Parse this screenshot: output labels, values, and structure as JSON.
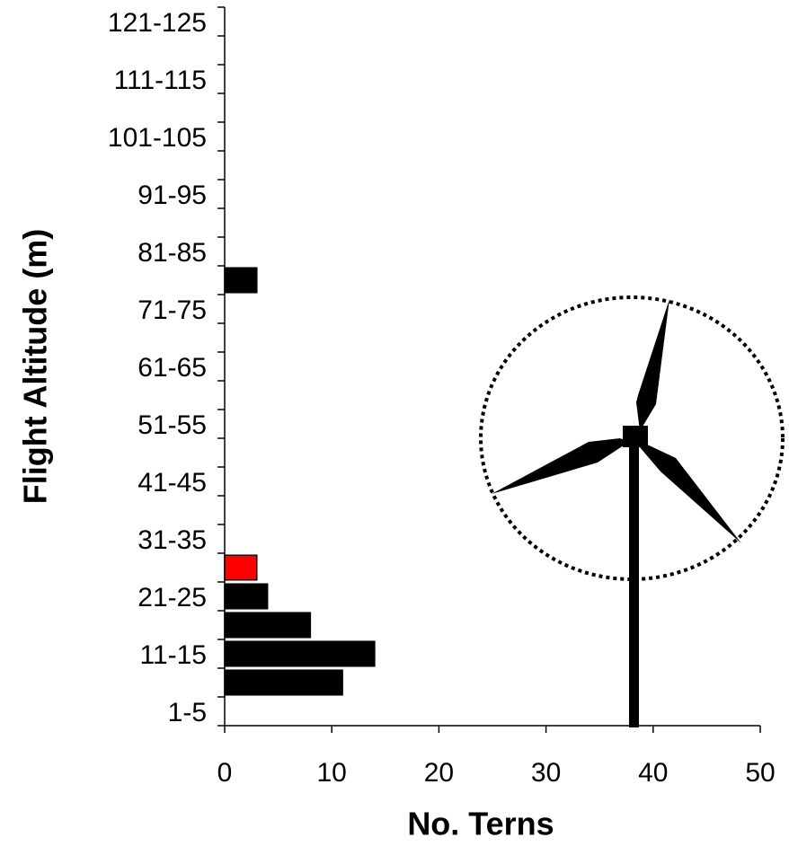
{
  "chart_data": {
    "type": "hbar",
    "x_label": "No. Terns",
    "y_label": "Flight Altitude (m)",
    "categories": [
      "1-5",
      null,
      "11-15",
      null,
      "21-25",
      null,
      "31-35",
      null,
      "41-45",
      null,
      "51-55",
      null,
      "61-65",
      null,
      "71-75",
      null,
      "81-85",
      null,
      "91-95",
      null,
      "101-105",
      null,
      "111-115",
      null,
      "121-125"
    ],
    "values": [
      0,
      11,
      14,
      8,
      4,
      3,
      0,
      0,
      0,
      0,
      0,
      0,
      0,
      0,
      0,
      3,
      0,
      0,
      0,
      0,
      0,
      0,
      0,
      0,
      0
    ],
    "colors": [
      "#000000",
      "#000000",
      "#000000",
      "#000000",
      "#000000",
      "#ff0000",
      "#000000",
      "#000000",
      "#000000",
      "#000000",
      "#000000",
      "#000000",
      "#000000",
      "#000000",
      "#000000",
      "#000000",
      "#000000",
      "#000000",
      "#000000",
      "#000000",
      "#000000",
      "#000000",
      "#000000",
      "#000000",
      "#000000"
    ],
    "xlim": [
      0,
      50
    ],
    "xticks": [
      0,
      10,
      20,
      30,
      40,
      50
    ],
    "grid": false
  }
}
